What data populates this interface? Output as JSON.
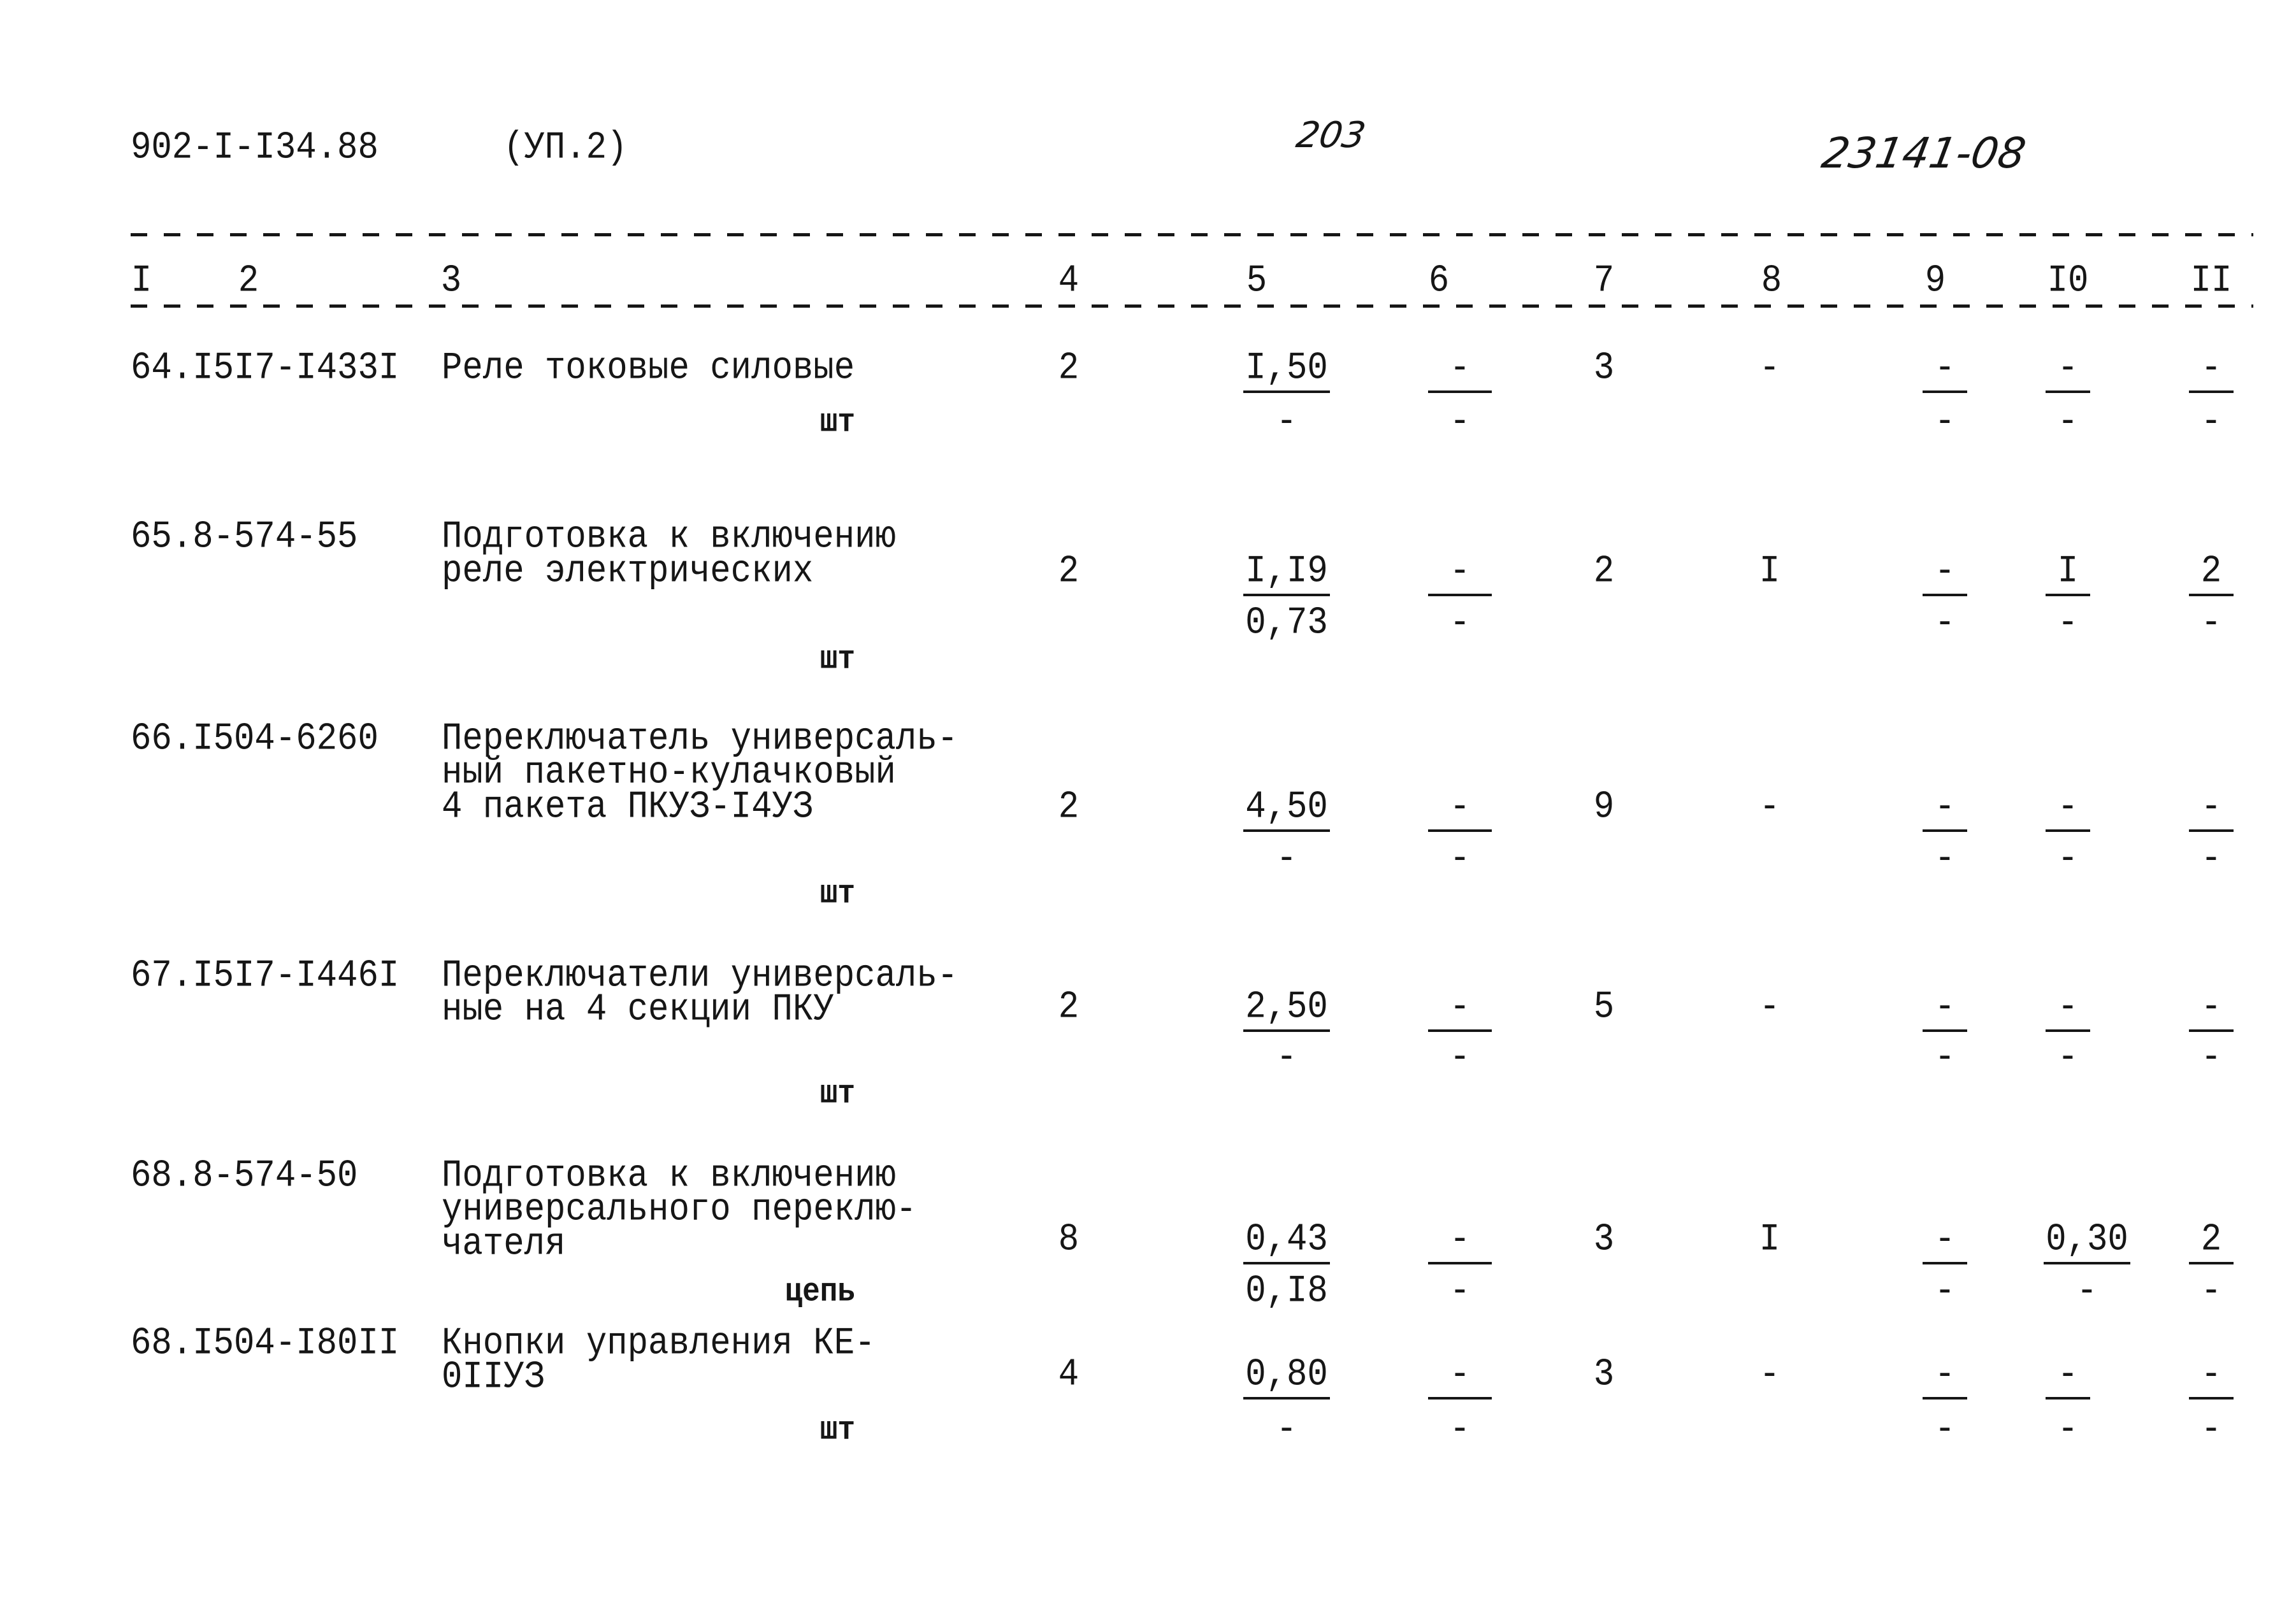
{
  "header": {
    "doc_code": "902-I-I34.88",
    "section": "(УП.2)",
    "page_number_handwritten": "203",
    "ref_number_handwritten": "23141-08"
  },
  "columns": [
    "I",
    "2",
    "3",
    "4",
    "5",
    "6",
    "7",
    "8",
    "9",
    "I0",
    "II"
  ],
  "rows": [
    {
      "code": "64.I5I7-I433I",
      "name": [
        "Реле токовые силовые"
      ],
      "unit": "шт",
      "c4": "2",
      "c5": {
        "top": "I,50",
        "bottom": "-"
      },
      "c6": {
        "top": "-",
        "bottom": "-"
      },
      "c7": "3",
      "c8": "-",
      "c9": {
        "top": "-",
        "bottom": "-"
      },
      "c10": {
        "top": "-",
        "bottom": "-"
      },
      "c11": {
        "top": "-",
        "bottom": "-"
      }
    },
    {
      "code": "65.8-574-55",
      "name": [
        "Подготовка к включению",
        "реле электрических"
      ],
      "unit": "шт",
      "c4": "2",
      "c5": {
        "top": "I,I9",
        "bottom": "0,73"
      },
      "c6": {
        "top": "-",
        "bottom": "-"
      },
      "c7": "2",
      "c8": "I",
      "c9": {
        "top": "-",
        "bottom": "-"
      },
      "c10": {
        "top": "I",
        "bottom": "-"
      },
      "c11": {
        "top": "2",
        "bottom": "-"
      }
    },
    {
      "code": "66.I504-6260",
      "name": [
        "Переключатель универсаль-",
        "ный пакетно-кулачковый",
        "4 пакета ПКУЗ-I4УЗ"
      ],
      "unit": "шт",
      "c4": "2",
      "c5": {
        "top": "4,50",
        "bottom": "-"
      },
      "c6": {
        "top": "-",
        "bottom": "-"
      },
      "c7": "9",
      "c8": "-",
      "c9": {
        "top": "-",
        "bottom": "-"
      },
      "c10": {
        "top": "-",
        "bottom": "-"
      },
      "c11": {
        "top": "-",
        "bottom": "-"
      }
    },
    {
      "code": "67.I5I7-I446I",
      "name": [
        "Переключатели универсаль-",
        "ные на 4 секции ПКУ"
      ],
      "unit": "шт",
      "c4": "2",
      "c5": {
        "top": "2,50",
        "bottom": "-"
      },
      "c6": {
        "top": "-",
        "bottom": "-"
      },
      "c7": "5",
      "c8": "-",
      "c9": {
        "top": "-",
        "bottom": "-"
      },
      "c10": {
        "top": "-",
        "bottom": "-"
      },
      "c11": {
        "top": "-",
        "bottom": "-"
      }
    },
    {
      "code": "68.8-574-50",
      "name": [
        "Подготовка к включению",
        "универсального переклю-",
        "чателя"
      ],
      "unit": "цепь",
      "c4": "8",
      "c5": {
        "top": "0,43",
        "bottom": "0,I8"
      },
      "c6": {
        "top": "-",
        "bottom": "-"
      },
      "c7": "3",
      "c8": "I",
      "c9": {
        "top": "-",
        "bottom": "-"
      },
      "c10": {
        "top": "0,30",
        "bottom": "-"
      },
      "c11": {
        "top": "2",
        "bottom": "-"
      }
    },
    {
      "code": "68.I504-I80II",
      "name": [
        "Кнопки управления КЕ-",
        "0IIУЗ"
      ],
      "unit": "шт",
      "c4": "4",
      "c5": {
        "top": "0,80",
        "bottom": "-"
      },
      "c6": {
        "top": "-",
        "bottom": "-"
      },
      "c7": "3",
      "c8": "-",
      "c9": {
        "top": "-",
        "bottom": "-"
      },
      "c10": {
        "top": "-",
        "bottom": "-"
      },
      "c11": {
        "top": "-",
        "bottom": "-"
      }
    }
  ]
}
